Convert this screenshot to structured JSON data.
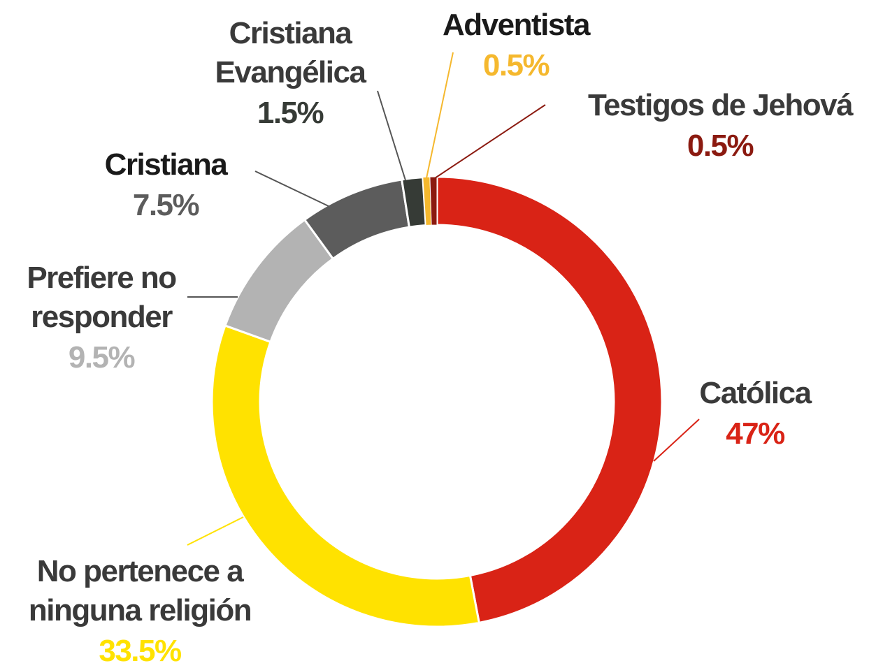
{
  "chart_data": {
    "type": "donut",
    "categories": [
      "Católica",
      "No pertenece a ninguna religión",
      "Prefiere no responder",
      "Cristiana",
      "Cristiana Evangélica",
      "Adventista",
      "Testigos de Jehová"
    ],
    "values": [
      47,
      33.5,
      9.5,
      7.5,
      1.5,
      0.5,
      0.5
    ],
    "value_labels": [
      "47%",
      "33.5%",
      "9.5%",
      "7.5%",
      "1.5%",
      "0.5%",
      "0.5%"
    ],
    "colors": [
      "#d92316",
      "#ffe200",
      "#b3b3b3",
      "#5c5c5c",
      "#363b36",
      "#f5b82e",
      "#8b1a10"
    ]
  }
}
